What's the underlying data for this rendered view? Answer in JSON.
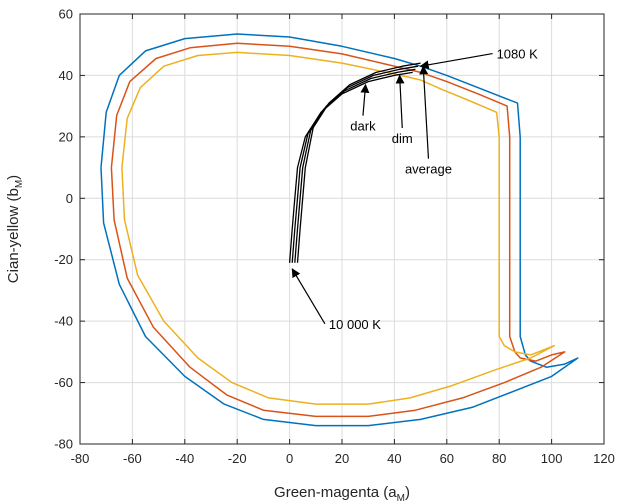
{
  "chart_data": {
    "type": "line",
    "xlabel": "Green-magenta (a",
    "xlabel_sub": "M",
    "ylabel": "Cian-yellow (b",
    "ylabel_sub": "M",
    "label_close": ")",
    "xlim": [
      -80,
      120
    ],
    "ylim": [
      -80,
      60
    ],
    "xticks": [
      -80,
      -60,
      -40,
      -20,
      0,
      20,
      40,
      60,
      80,
      100,
      120
    ],
    "yticks": [
      -80,
      -60,
      -40,
      -20,
      0,
      20,
      40,
      60
    ],
    "grid": true,
    "series": [
      {
        "color": "#0072BD",
        "points": [
          [
            -72,
            10
          ],
          [
            -70,
            28
          ],
          [
            -65,
            40
          ],
          [
            -55,
            48
          ],
          [
            -40,
            52
          ],
          [
            -20,
            53.5
          ],
          [
            0,
            52.5
          ],
          [
            20,
            49.5
          ],
          [
            40,
            45.5
          ],
          [
            50,
            43
          ],
          [
            60,
            40
          ],
          [
            75,
            35
          ],
          [
            87,
            31
          ],
          [
            88,
            20
          ],
          [
            88,
            0
          ],
          [
            88,
            -20
          ],
          [
            88,
            -40
          ],
          [
            88,
            -45
          ],
          [
            90,
            -51
          ],
          [
            92,
            -53
          ],
          [
            98,
            -55
          ],
          [
            105,
            -54
          ],
          [
            110,
            -52
          ],
          [
            100,
            -58
          ],
          [
            85,
            -63
          ],
          [
            70,
            -68
          ],
          [
            50,
            -72
          ],
          [
            30,
            -74
          ],
          [
            10,
            -74
          ],
          [
            -10,
            -72
          ],
          [
            -25,
            -67
          ],
          [
            -40,
            -58
          ],
          [
            -55,
            -45
          ],
          [
            -65,
            -28
          ],
          [
            -71,
            -8
          ],
          [
            -72,
            10
          ]
        ]
      },
      {
        "color": "#D95319",
        "points": [
          [
            -68,
            10
          ],
          [
            -66,
            27
          ],
          [
            -61,
            38
          ],
          [
            -51,
            45.5
          ],
          [
            -38,
            49
          ],
          [
            -20,
            50.5
          ],
          [
            0,
            49.5
          ],
          [
            20,
            47
          ],
          [
            40,
            43
          ],
          [
            50,
            41
          ],
          [
            60,
            38
          ],
          [
            72,
            34
          ],
          [
            83,
            30
          ],
          [
            84,
            20
          ],
          [
            84,
            0
          ],
          [
            84,
            -20
          ],
          [
            84,
            -40
          ],
          [
            84,
            -45
          ],
          [
            86,
            -50
          ],
          [
            88,
            -52
          ],
          [
            94,
            -53
          ],
          [
            100,
            -51
          ],
          [
            105,
            -50
          ],
          [
            96,
            -55
          ],
          [
            82,
            -60
          ],
          [
            66,
            -65
          ],
          [
            48,
            -69
          ],
          [
            30,
            -71
          ],
          [
            10,
            -71
          ],
          [
            -10,
            -69
          ],
          [
            -24,
            -64
          ],
          [
            -38,
            -55
          ],
          [
            -52,
            -42
          ],
          [
            -62,
            -26
          ],
          [
            -67,
            -7
          ],
          [
            -68,
            10
          ]
        ]
      },
      {
        "color": "#EDB120",
        "points": [
          [
            -64,
            10
          ],
          [
            -62,
            26
          ],
          [
            -57,
            36
          ],
          [
            -48,
            43
          ],
          [
            -35,
            46.5
          ],
          [
            -20,
            47.5
          ],
          [
            0,
            46.5
          ],
          [
            20,
            44
          ],
          [
            40,
            40.5
          ],
          [
            50,
            38.5
          ],
          [
            58,
            35.5
          ],
          [
            68,
            32
          ],
          [
            79,
            28
          ],
          [
            80,
            20
          ],
          [
            80,
            0
          ],
          [
            80,
            -20
          ],
          [
            80,
            -40
          ],
          [
            80,
            -45
          ],
          [
            82,
            -48
          ],
          [
            86,
            -50
          ],
          [
            92,
            -51
          ],
          [
            98,
            -49
          ],
          [
            101,
            -48
          ],
          [
            92,
            -52
          ],
          [
            78,
            -56
          ],
          [
            62,
            -61
          ],
          [
            46,
            -65
          ],
          [
            30,
            -67
          ],
          [
            10,
            -67
          ],
          [
            -8,
            -65
          ],
          [
            -22,
            -60
          ],
          [
            -35,
            -52
          ],
          [
            -48,
            -40
          ],
          [
            -58,
            -25
          ],
          [
            -63,
            -7
          ],
          [
            -64,
            10
          ]
        ]
      },
      {
        "color": "#000000",
        "points": [
          [
            0,
            -21
          ],
          [
            1,
            -10
          ],
          [
            2,
            0
          ],
          [
            3,
            10
          ],
          [
            6,
            20
          ],
          [
            12,
            28
          ],
          [
            20,
            34
          ],
          [
            30,
            38
          ],
          [
            40,
            40
          ],
          [
            47,
            41
          ]
        ]
      },
      {
        "color": "#000000",
        "points": [
          [
            1,
            -21
          ],
          [
            2,
            -10
          ],
          [
            3,
            0
          ],
          [
            4,
            10
          ],
          [
            7,
            21
          ],
          [
            13,
            29
          ],
          [
            21,
            35
          ],
          [
            31,
            39
          ],
          [
            41,
            41
          ],
          [
            48,
            42
          ]
        ]
      },
      {
        "color": "#000000",
        "points": [
          [
            2,
            -21
          ],
          [
            3,
            -10
          ],
          [
            4,
            0
          ],
          [
            5,
            10
          ],
          [
            8,
            22
          ],
          [
            14,
            30
          ],
          [
            22,
            36
          ],
          [
            32,
            40
          ],
          [
            42,
            42
          ],
          [
            49,
            43
          ]
        ]
      },
      {
        "color": "#000000",
        "points": [
          [
            3,
            -21
          ],
          [
            4,
            -10
          ],
          [
            5,
            0
          ],
          [
            6,
            10
          ],
          [
            9,
            23
          ],
          [
            15,
            31
          ],
          [
            23,
            37
          ],
          [
            33,
            41
          ],
          [
            43,
            43
          ],
          [
            50,
            44
          ]
        ]
      }
    ],
    "annotations": [
      {
        "id": "k1080",
        "text": "1080 K",
        "point": [
          50,
          43
        ],
        "label": [
          79,
          45.5
        ],
        "anchor": "start"
      },
      {
        "id": "dark",
        "text": "dark",
        "point": [
          29,
          37
        ],
        "label": [
          28,
          22
        ],
        "anchor": "middle"
      },
      {
        "id": "dim",
        "text": "dim",
        "point": [
          42,
          40
        ],
        "label": [
          43,
          18
        ],
        "anchor": "middle"
      },
      {
        "id": "average",
        "text": "average",
        "point": [
          51,
          43
        ],
        "label": [
          53,
          8
        ],
        "anchor": "middle"
      },
      {
        "id": "k10000",
        "text": "10 000 K",
        "point": [
          1,
          -23
        ],
        "label": [
          15,
          -42.5
        ],
        "anchor": "start"
      }
    ]
  }
}
